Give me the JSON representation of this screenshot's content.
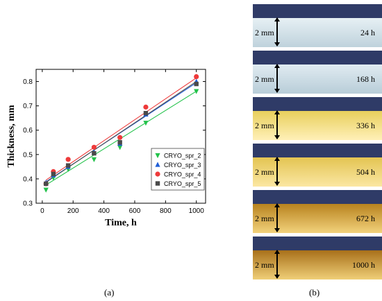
{
  "chart_data": {
    "type": "scatter",
    "xlabel": "Time, h",
    "ylabel": "Thickness, mm",
    "xlim": [
      -40,
      1060
    ],
    "ylim": [
      0.3,
      0.85
    ],
    "xticks": [
      0,
      200,
      400,
      600,
      800,
      1000
    ],
    "yticks": [
      0.3,
      0.4,
      0.5,
      0.6,
      0.7,
      0.8
    ],
    "x": [
      24,
      72,
      168,
      336,
      504,
      672,
      1000
    ],
    "legend_position": "center-right",
    "series": [
      {
        "name": "CRYO_spr_2",
        "marker": "triangle-down",
        "color": "#22c24a",
        "values": [
          0.355,
          0.405,
          0.44,
          0.48,
          0.53,
          0.63,
          0.76
        ],
        "fit": [
          0.375,
          0.76
        ]
      },
      {
        "name": "CRYO_spr_3",
        "marker": "triangle-up",
        "color": "#1f5ed6",
        "values": [
          0.385,
          0.415,
          0.45,
          0.51,
          0.545,
          0.665,
          0.8
        ],
        "fit": [
          0.388,
          0.795
        ]
      },
      {
        "name": "CRYO_spr_4",
        "marker": "circle",
        "color": "#ee3a3a",
        "values": [
          0.38,
          0.43,
          0.48,
          0.53,
          0.57,
          0.695,
          0.82
        ],
        "fit": [
          0.395,
          0.815
        ]
      },
      {
        "name": "CRYO_spr_5",
        "marker": "square",
        "color": "#4a4a4a",
        "values": [
          0.38,
          0.42,
          0.455,
          0.505,
          0.55,
          0.67,
          0.79
        ],
        "fit": [
          0.386,
          0.8
        ]
      }
    ]
  },
  "captions": {
    "a": "(a)",
    "b": "(b)"
  },
  "photos": [
    {
      "time": "24 h",
      "scale": "2 mm",
      "color_top": "#e6f0f4",
      "color_bottom": "#bfd2dc"
    },
    {
      "time": "168 h",
      "scale": "2 mm",
      "color_top": "#e0ebf1",
      "color_bottom": "#b8cdd8"
    },
    {
      "time": "336 h",
      "scale": "2 mm",
      "color_top": "#e8cf5c",
      "color_bottom": "#fff0b8"
    },
    {
      "time": "504 h",
      "scale": "2 mm",
      "color_top": "#e3c452",
      "color_bottom": "#fbe7a3"
    },
    {
      "time": "672 h",
      "scale": "2 mm",
      "color_top": "#b8821e",
      "color_bottom": "#f2d27c"
    },
    {
      "time": "1000 h",
      "scale": "2 mm",
      "color_top": "#a8701a",
      "color_bottom": "#efcf78"
    }
  ]
}
